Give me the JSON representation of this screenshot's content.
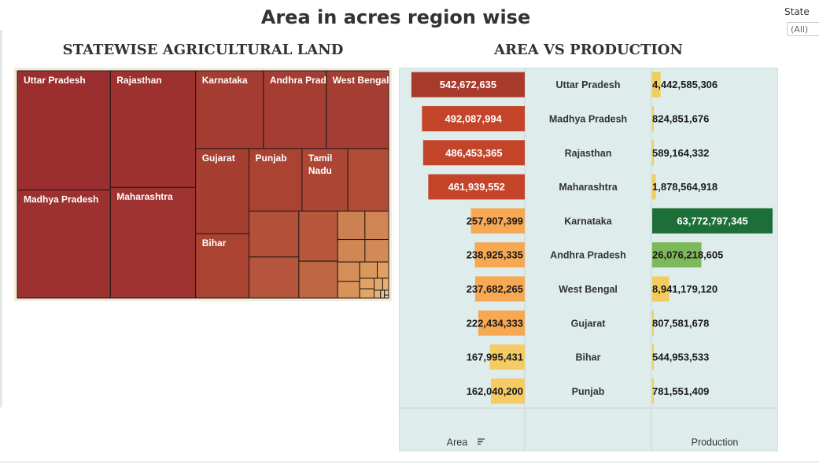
{
  "dashboard": {
    "title": "Area in acres region wise",
    "filter_label": "State",
    "filter_value": "(All)"
  },
  "colors": {
    "treemap_scale": [
      "#9b2f2f",
      "#ad4634",
      "#cf8352",
      "#e1a062",
      "#e8b57a",
      "#edd6b5"
    ],
    "area_scale": [
      "#a83a2c",
      "#c44429",
      "#f6a853",
      "#f5cb63"
    ],
    "production_high": "#1e6e3a",
    "production_mid": "#7db95a",
    "production_low": "#f2cd5c",
    "panel_bg": "#deedeb"
  },
  "chart_data": [
    {
      "type": "treemap",
      "title": "STATEWISE AGRICULTURAL LAND",
      "measure": "Area (acres)",
      "items": [
        {
          "name": "Uttar Pradesh",
          "value": 542672635,
          "label": "Uttar Pradesh"
        },
        {
          "name": "Madhya Pradesh",
          "value": 492087994,
          "label": "Madhya Pradesh"
        },
        {
          "name": "Rajasthan",
          "value": 486453365,
          "label": "Rajasthan"
        },
        {
          "name": "Maharashtra",
          "value": 461939552,
          "label": "Maharashtra"
        },
        {
          "name": "Karnataka",
          "value": 257907399,
          "label": "Karnataka"
        },
        {
          "name": "Andhra Pradesh",
          "value": 238925335,
          "label": "Andhra Pradesh"
        },
        {
          "name": "West Bengal",
          "value": 237682265,
          "label": "West Bengal"
        },
        {
          "name": "Gujarat",
          "value": 222434333,
          "label": "Gujarat"
        },
        {
          "name": "Bihar",
          "value": 167995431,
          "label": "Bihar"
        },
        {
          "name": "Punjab",
          "value": 162040200,
          "label": "Punjab"
        },
        {
          "name": "Tamil Nadu",
          "value": 140000000,
          "label": "Tamil\nNadu"
        },
        {
          "name": "",
          "value": 125000000
        },
        {
          "name": "",
          "value": 112000000
        },
        {
          "name": "",
          "value": 100000000
        },
        {
          "name": "",
          "value": 95000000
        },
        {
          "name": "",
          "value": 70000000
        },
        {
          "name": "",
          "value": 38000000
        },
        {
          "name": "",
          "value": 33000000
        },
        {
          "name": "",
          "value": 30000000
        },
        {
          "name": "",
          "value": 26000000
        },
        {
          "name": "",
          "value": 21000000
        },
        {
          "name": "",
          "value": 18000000
        },
        {
          "name": "",
          "value": 14000000
        },
        {
          "name": "",
          "value": 9000000
        },
        {
          "name": "",
          "value": 7500000
        },
        {
          "name": "",
          "value": 6500000
        },
        {
          "name": "",
          "value": 5000000
        },
        {
          "name": "",
          "value": 3500000
        },
        {
          "name": "",
          "value": 2500000
        },
        {
          "name": "",
          "value": 1500000
        },
        {
          "name": "",
          "value": 1000000
        },
        {
          "name": "",
          "value": 600000
        }
      ]
    },
    {
      "type": "bar",
      "title": "AREA VS PRODUCTION",
      "categories": [
        "Uttar Pradesh",
        "Madhya Pradesh",
        "Rajasthan",
        "Maharashtra",
        "Karnataka",
        "Andhra Pradesh",
        "West Bengal",
        "Gujarat",
        "Bihar",
        "Punjab"
      ],
      "series": [
        {
          "name": "Area",
          "values": [
            542672635,
            492087994,
            486453365,
            461939552,
            257907399,
            238925335,
            237682265,
            222434333,
            167995431,
            162040200
          ],
          "labels": [
            "542,672,635",
            "492,087,994",
            "486,453,365",
            "461,939,552",
            "257,907,399",
            "238,925,335",
            "237,682,265",
            "222,434,333",
            "167,995,431",
            "162,040,200"
          ]
        },
        {
          "name": "Production",
          "values": [
            4442585306,
            824851676,
            589164332,
            1878564918,
            63772797345,
            26076218605,
            8941179120,
            807581678,
            544953533,
            781551409
          ],
          "labels": [
            "4,442,585,306",
            "824,851,676",
            "589,164,332",
            "1,878,564,918",
            "63,772,797,345",
            "26,076,218,605",
            "8,941,179,120",
            "807,581,678",
            "544,953,533",
            "781,551,409"
          ]
        }
      ],
      "area_axis_label": "Area",
      "production_axis_label": "Production",
      "sort": "descending by Area",
      "area_range": [
        0,
        580000000
      ],
      "production_range": [
        0,
        63772797345
      ]
    }
  ]
}
